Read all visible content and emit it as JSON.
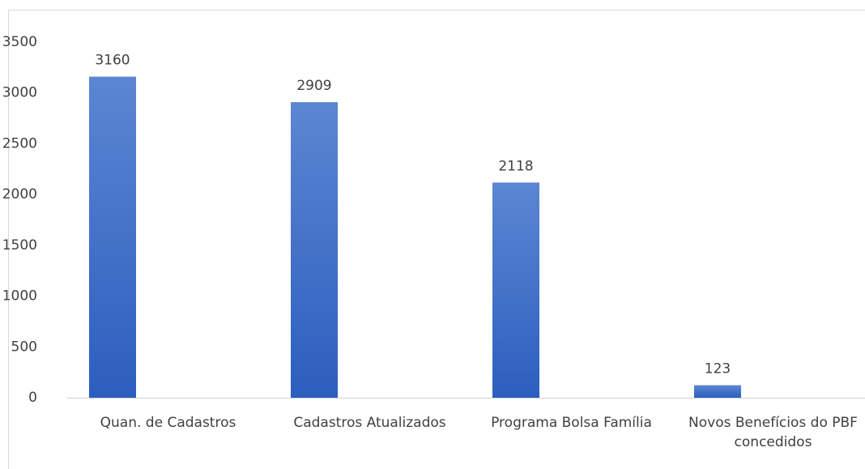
{
  "chart_data": {
    "type": "bar",
    "categories": [
      "Quan. de Cadastros",
      "Cadastros Atualizados",
      "Programa Bolsa Família",
      "Novos Benefícios do PBF concedidos"
    ],
    "values": [
      3160,
      2909,
      2118,
      123
    ],
    "color": "#3a68c6",
    "ylim": [
      0,
      3500
    ],
    "yticks": [
      0,
      500,
      1000,
      1500,
      2000,
      2500,
      3000,
      3500
    ],
    "grid": false
  }
}
